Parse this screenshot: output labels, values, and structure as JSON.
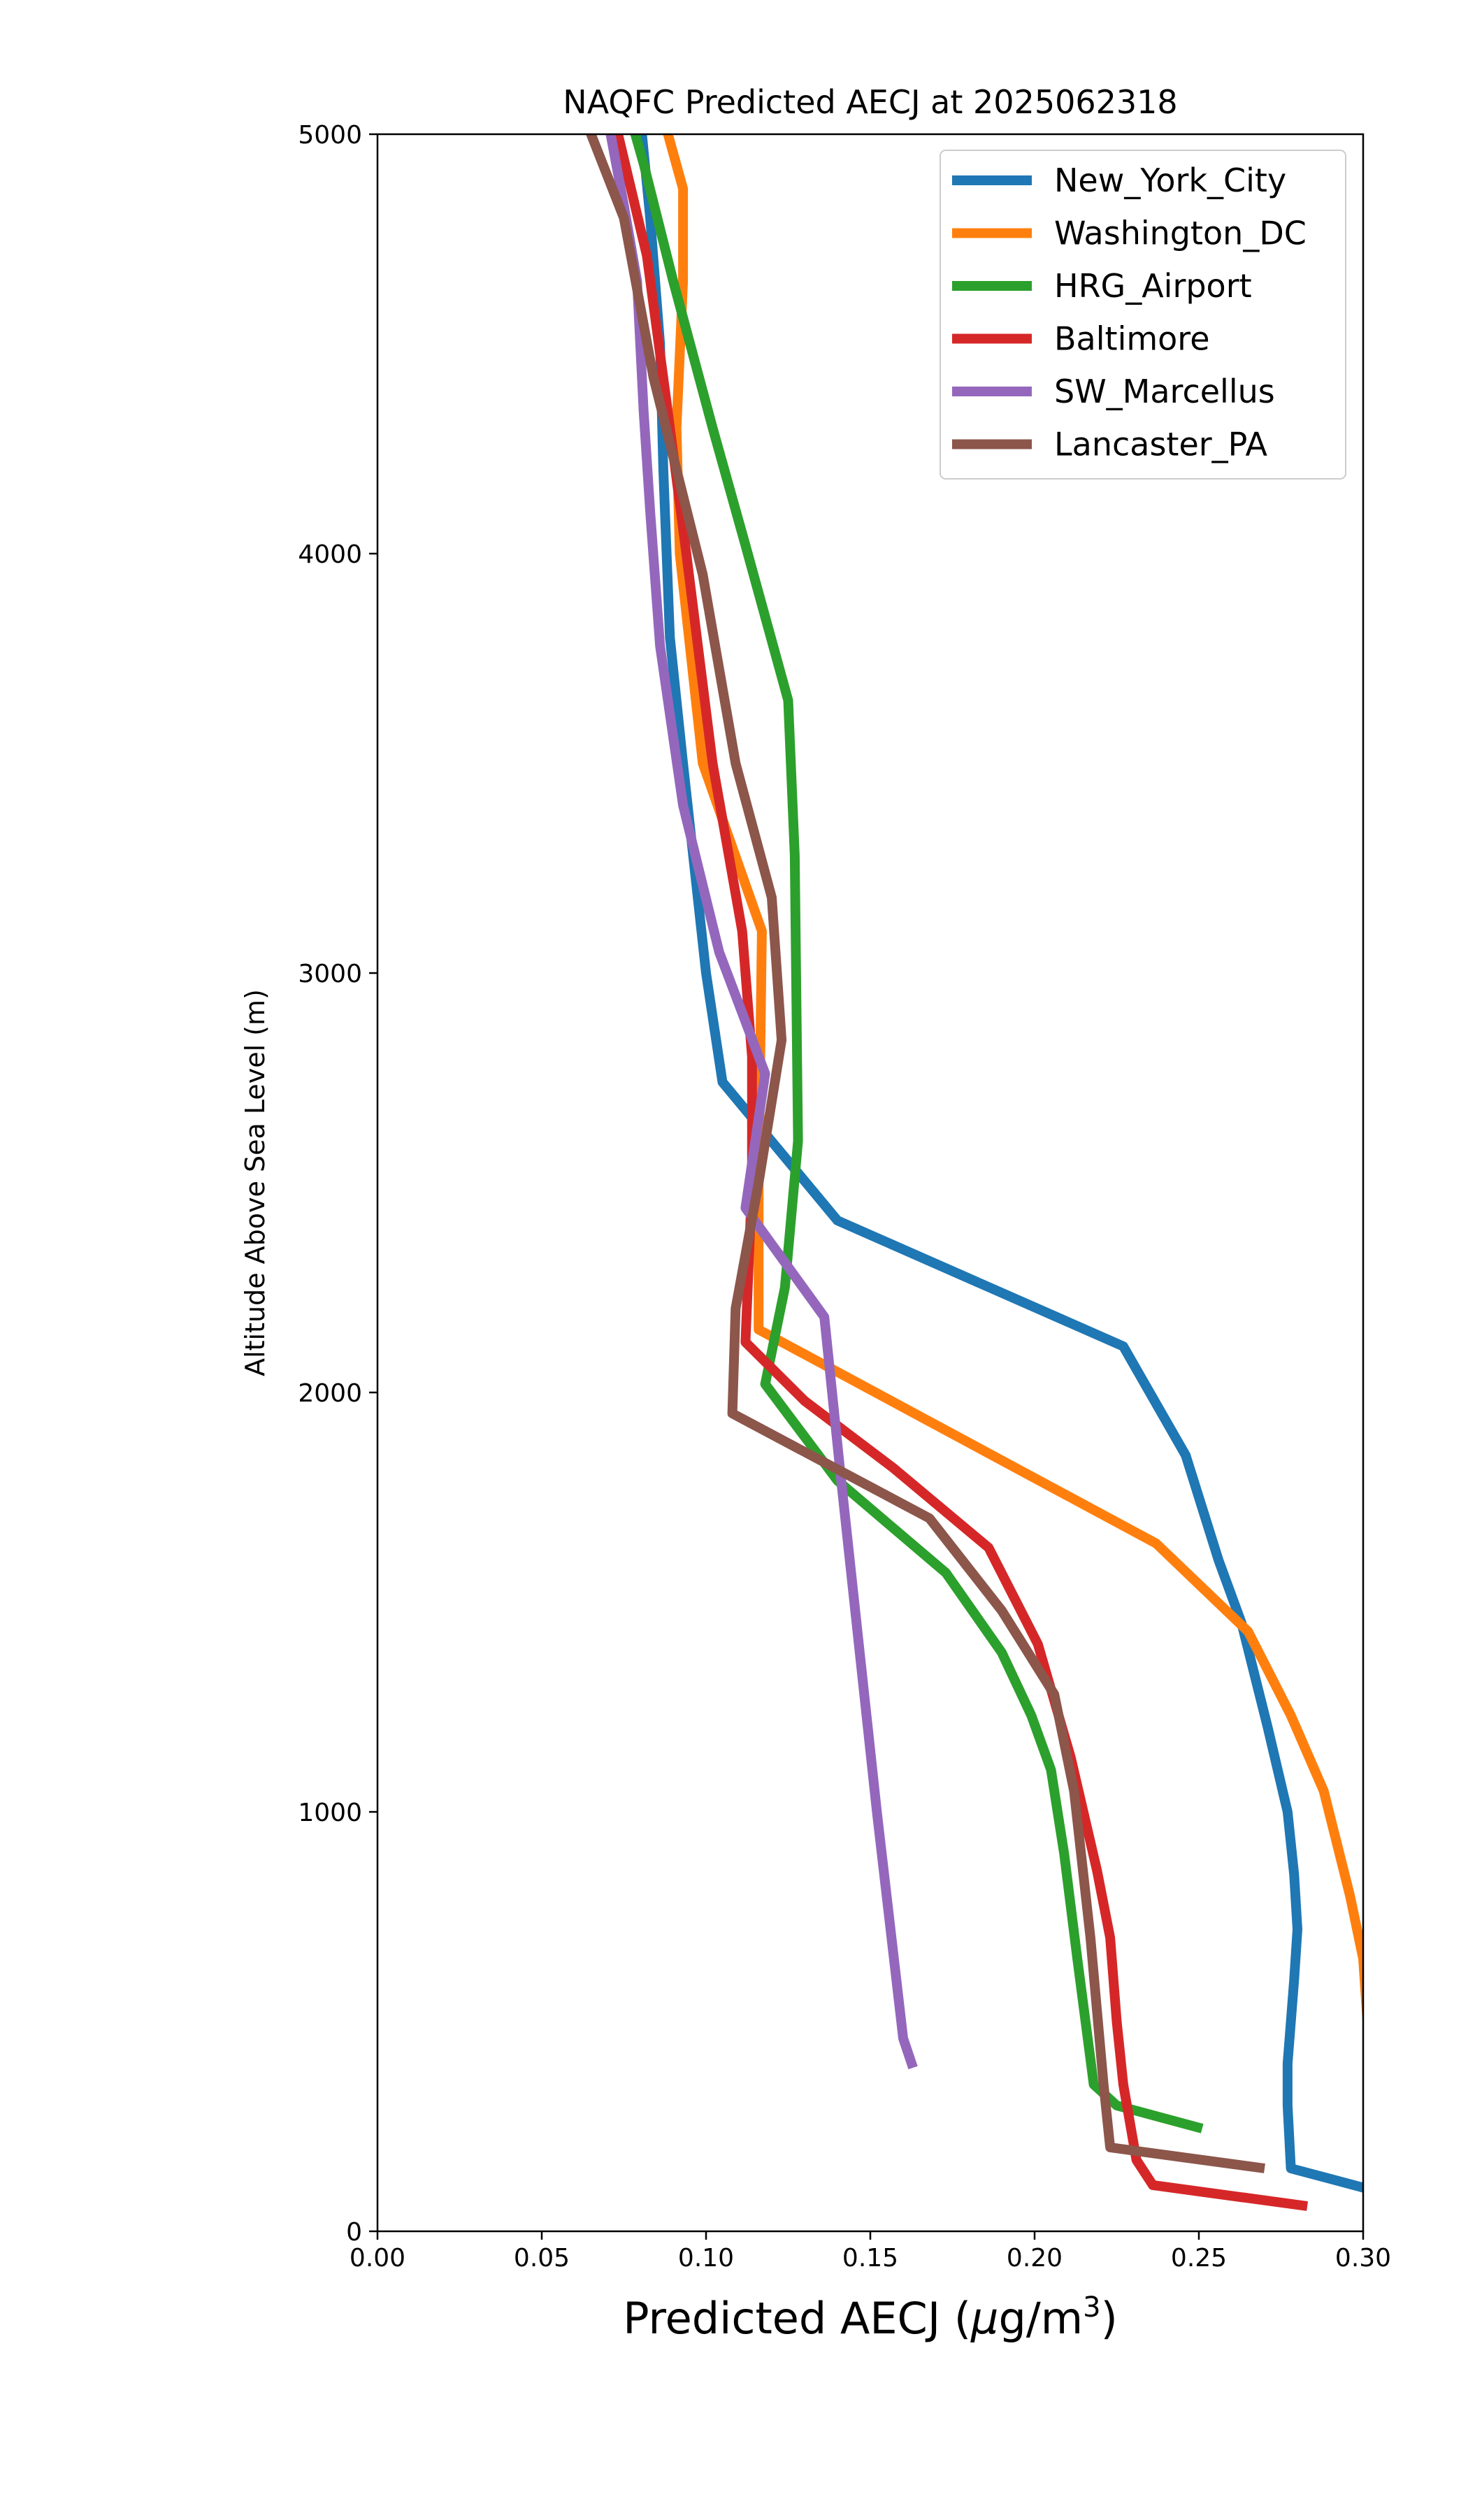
{
  "chart_data": {
    "type": "line",
    "title": "NAQFC Predicted AECJ at 2025062318",
    "xlabel": "Predicted AECJ (",
    "xlabel_mu": "μ",
    "xlabel_unit": "g/m",
    "xlabel_exp": "3",
    "xlabel_close": ")",
    "ylabel": "Altitude Above Sea Level (m)",
    "xlim": [
      0.0,
      0.3
    ],
    "ylim": [
      0,
      5000
    ],
    "xticks": [
      0.0,
      0.05,
      0.1,
      0.15,
      0.2,
      0.25,
      0.3
    ],
    "xtick_labels": [
      "0.00",
      "0.05",
      "0.10",
      "0.15",
      "0.20",
      "0.25",
      "0.30"
    ],
    "yticks": [
      0,
      1000,
      2000,
      3000,
      4000,
      5000
    ],
    "ytick_labels": [
      "0",
      "1000",
      "2000",
      "3000",
      "4000",
      "5000"
    ],
    "grid": false,
    "legend_position": "upper right",
    "series": [
      {
        "name": "New_York_City",
        "color": "#1f77b4",
        "points": [
          [
            0.302,
            100
          ],
          [
            0.278,
            150
          ],
          [
            0.277,
            300
          ],
          [
            0.277,
            400
          ],
          [
            0.278,
            500
          ],
          [
            0.279,
            600
          ],
          [
            0.28,
            720
          ],
          [
            0.279,
            850
          ],
          [
            0.277,
            1000
          ],
          [
            0.271,
            1200
          ],
          [
            0.263,
            1450
          ],
          [
            0.256,
            1600
          ],
          [
            0.246,
            1850
          ],
          [
            0.227,
            2110
          ],
          [
            0.14,
            2410
          ],
          [
            0.105,
            2740
          ],
          [
            0.1,
            3000
          ],
          [
            0.093,
            3500
          ],
          [
            0.089,
            3800
          ],
          [
            0.088,
            4000
          ],
          [
            0.087,
            4200
          ],
          [
            0.086,
            4500
          ],
          [
            0.083,
            4800
          ],
          [
            0.08,
            5040
          ]
        ]
      },
      {
        "name": "Washington_DC",
        "color": "#ff7f0e",
        "points": [
          [
            0.302,
            420
          ],
          [
            0.3,
            650
          ],
          [
            0.296,
            800
          ],
          [
            0.288,
            1050
          ],
          [
            0.278,
            1230
          ],
          [
            0.265,
            1430
          ],
          [
            0.237,
            1640
          ],
          [
            0.116,
            2150
          ],
          [
            0.116,
            2500
          ],
          [
            0.117,
            3100
          ],
          [
            0.099,
            3500
          ],
          [
            0.092,
            4000
          ],
          [
            0.091,
            4300
          ],
          [
            0.093,
            4650
          ],
          [
            0.093,
            4870
          ],
          [
            0.087,
            5040
          ]
        ]
      },
      {
        "name": "HRG_Airport",
        "color": "#2ca02c",
        "points": [
          [
            0.251,
            245
          ],
          [
            0.225,
            300
          ],
          [
            0.218,
            350
          ],
          [
            0.213,
            650
          ],
          [
            0.209,
            900
          ],
          [
            0.205,
            1100
          ],
          [
            0.199,
            1230
          ],
          [
            0.19,
            1380
          ],
          [
            0.173,
            1570
          ],
          [
            0.14,
            1790
          ],
          [
            0.118,
            2020
          ],
          [
            0.124,
            2250
          ],
          [
            0.128,
            2600
          ],
          [
            0.127,
            3280
          ],
          [
            0.125,
            3650
          ],
          [
            0.112,
            4020
          ],
          [
            0.102,
            4300
          ],
          [
            0.09,
            4650
          ],
          [
            0.081,
            4930
          ],
          [
            0.077,
            5040
          ]
        ]
      },
      {
        "name": "Baltimore",
        "color": "#d62728",
        "points": [
          [
            0.283,
            60
          ],
          [
            0.236,
            110
          ],
          [
            0.231,
            170
          ],
          [
            0.227,
            350
          ],
          [
            0.225,
            500
          ],
          [
            0.223,
            700
          ],
          [
            0.219,
            860
          ],
          [
            0.211,
            1130
          ],
          [
            0.201,
            1400
          ],
          [
            0.186,
            1630
          ],
          [
            0.157,
            1820
          ],
          [
            0.13,
            1980
          ],
          [
            0.112,
            2120
          ],
          [
            0.114,
            2500
          ],
          [
            0.114,
            2800
          ],
          [
            0.111,
            3100
          ],
          [
            0.102,
            3500
          ],
          [
            0.094,
            4000
          ],
          [
            0.088,
            4360
          ],
          [
            0.082,
            4710
          ],
          [
            0.072,
            5040
          ]
        ]
      },
      {
        "name": "SW_Marcellus",
        "color": "#9467bd",
        "points": [
          [
            0.163,
            390
          ],
          [
            0.16,
            460
          ],
          [
            0.152,
            1000
          ],
          [
            0.141,
            1800
          ],
          [
            0.136,
            2180
          ],
          [
            0.112,
            2440
          ],
          [
            0.118,
            2760
          ],
          [
            0.104,
            3050
          ],
          [
            0.093,
            3400
          ],
          [
            0.086,
            3780
          ],
          [
            0.083,
            4100
          ],
          [
            0.081,
            4340
          ],
          [
            0.079,
            4650
          ],
          [
            0.075,
            4830
          ],
          [
            0.07,
            5040
          ]
        ]
      },
      {
        "name": "Lancaster_PA",
        "color": "#8c564b",
        "points": [
          [
            0.27,
            150
          ],
          [
            0.223,
            200
          ],
          [
            0.221,
            350
          ],
          [
            0.217,
            700
          ],
          [
            0.212,
            1050
          ],
          [
            0.206,
            1280
          ],
          [
            0.19,
            1480
          ],
          [
            0.168,
            1700
          ],
          [
            0.108,
            1950
          ],
          [
            0.109,
            2200
          ],
          [
            0.116,
            2500
          ],
          [
            0.123,
            2840
          ],
          [
            0.12,
            3180
          ],
          [
            0.109,
            3500
          ],
          [
            0.099,
            3950
          ],
          [
            0.084,
            4420
          ],
          [
            0.075,
            4800
          ],
          [
            0.063,
            5040
          ]
        ]
      }
    ]
  }
}
